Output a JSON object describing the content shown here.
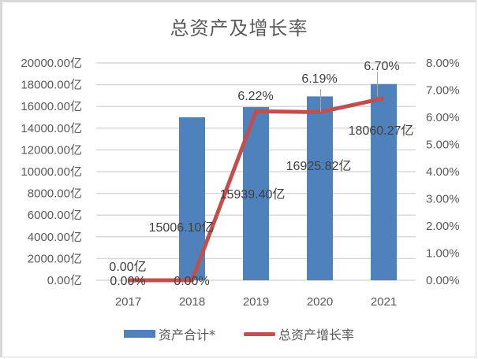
{
  "chart_data": {
    "type": "bar+line",
    "title": "总资产及增长率",
    "categories": [
      "2017",
      "2018",
      "2019",
      "2020",
      "2021"
    ],
    "series": [
      {
        "name": "资产合计*",
        "type": "bar",
        "axis": "left",
        "color": "#4f81bd",
        "values": [
          0.0,
          15006.1,
          15939.4,
          16925.82,
          18060.27
        ],
        "labels": [
          "0.00亿",
          "15006.10亿",
          "15939.40亿",
          "16925.82亿",
          "18060.27亿"
        ]
      },
      {
        "name": "总资产增长率",
        "type": "line",
        "axis": "right",
        "color": "#c0504d",
        "values": [
          0.0,
          0.0,
          6.22,
          6.19,
          6.7
        ],
        "labels": [
          "0.00%",
          "0.00%",
          "6.22%",
          "6.19%",
          "6.70%"
        ]
      }
    ],
    "left_axis": {
      "ylim": [
        0,
        20000
      ],
      "step": 2000,
      "ticks": [
        "0.00亿",
        "2000.00亿",
        "4000.00亿",
        "6000.00亿",
        "8000.00亿",
        "10000.00亿",
        "12000.00亿",
        "14000.00亿",
        "16000.00亿",
        "18000.00亿",
        "20000.00亿"
      ]
    },
    "right_axis": {
      "ylim": [
        0,
        8
      ],
      "step": 1,
      "ticks": [
        "0.00%",
        "1.00%",
        "2.00%",
        "3.00%",
        "4.00%",
        "5.00%",
        "6.00%",
        "7.00%",
        "8.00%"
      ]
    },
    "grid": true,
    "legend_position": "bottom"
  },
  "legend": {
    "bar_label": "资产合计*",
    "line_label": "总资产增长率"
  },
  "colors": {
    "bar": "#4f81bd",
    "line": "#c0504d",
    "grid": "#d9d9d9",
    "text": "#595959"
  }
}
